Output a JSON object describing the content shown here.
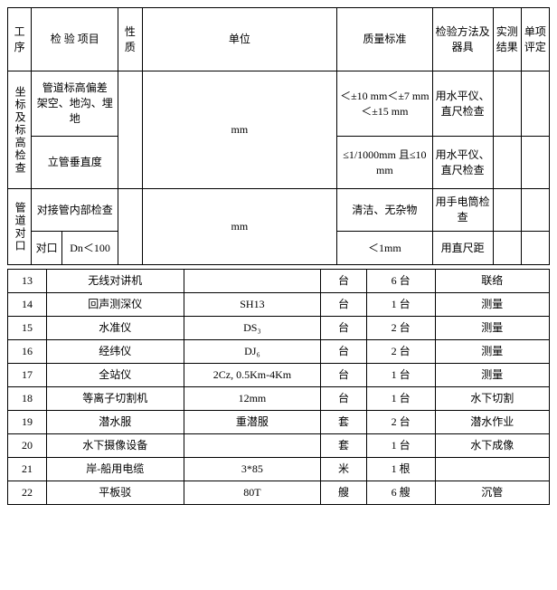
{
  "top_table": {
    "headers": {
      "col1": "工序",
      "col2": "检 验 项目",
      "col3": "性质",
      "col4": "单位",
      "col5": "质量标准",
      "col6": "检验方法及器具",
      "col7": "实测结果",
      "col8": "单项评定"
    },
    "sections": [
      {
        "group": "坐标及标高检查",
        "rows": [
          {
            "item": "管道标高偏差\n架空、地沟、埋地",
            "nature": "",
            "unit": "mm",
            "standard": "＜±10 mm＜±7 mm＜±15 mm",
            "method": "用水平仪、直尺检查",
            "result": "",
            "eval": ""
          },
          {
            "item": "立管垂直度",
            "nature": "",
            "unit": "",
            "standard": "≤1/1000mm 且≤10 mm",
            "method": "用水平仪、直尺检查",
            "result": "",
            "eval": ""
          }
        ]
      },
      {
        "group": "管道对口",
        "rows": [
          {
            "item": "对接管内部检查",
            "nature": "",
            "unit": "",
            "standard": "清洁、无杂物",
            "method": "用手电筒检查",
            "result": "",
            "eval": ""
          },
          {
            "item_sub1": "对口",
            "item_sub2": "Dn＜100",
            "nature": "",
            "unit": "mm",
            "standard": "＜1mm",
            "method": "用直尺距",
            "result": "",
            "eval": ""
          }
        ]
      }
    ]
  },
  "bottom_table": {
    "rows": [
      {
        "seq": "13",
        "name": "无线对讲机",
        "spec": "",
        "unit": "台",
        "qty": "6 台",
        "purpose": "联络"
      },
      {
        "seq": "14",
        "name": "回声测深仪",
        "spec": "SH13",
        "unit": "台",
        "qty": "1 台",
        "purpose": "测量"
      },
      {
        "seq": "15",
        "name": "水准仪",
        "spec": "DS₃",
        "unit": "台",
        "qty": "2 台",
        "purpose": "测量"
      },
      {
        "seq": "16",
        "name": "经纬仪",
        "spec": "DJ₆",
        "unit": "台",
        "qty": "2 台",
        "purpose": "测量"
      },
      {
        "seq": "17",
        "name": "全站仪",
        "spec": "2Cz, 0.5Km-4Km",
        "unit": "台",
        "qty": "1 台",
        "purpose": "测量"
      },
      {
        "seq": "18",
        "name": "等离子切割机",
        "spec": "12mm",
        "unit": "台",
        "qty": "1 台",
        "purpose": "水下切割"
      },
      {
        "seq": "19",
        "name": "潜水服",
        "spec": "重潜服",
        "unit": "套",
        "qty": "2 台",
        "purpose": "潜水作业"
      },
      {
        "seq": "20",
        "name": "水下摄像设备",
        "spec": "",
        "unit": "套",
        "qty": "1 台",
        "purpose": "水下成像"
      },
      {
        "seq": "21",
        "name": "岸-船用电缆",
        "spec": "3*85",
        "unit": "米",
        "qty": "1 根",
        "purpose": ""
      },
      {
        "seq": "22",
        "name": "平板驳",
        "spec": "80T",
        "unit": "艘",
        "qty": "6 艘",
        "purpose": "沉管"
      }
    ]
  }
}
